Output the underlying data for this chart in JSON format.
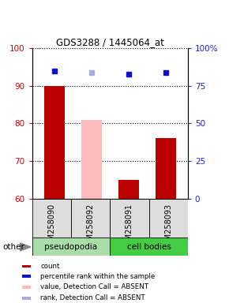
{
  "title": "GDS3288 / 1445064_at",
  "samples": [
    "GSM258090",
    "GSM258092",
    "GSM258091",
    "GSM258093"
  ],
  "bar_values": [
    90,
    81,
    65,
    76
  ],
  "bar_colors": [
    "#bb0000",
    "#ffbbbb",
    "#bb0000",
    "#bb0000"
  ],
  "dot_present_values": [
    85,
    null,
    83,
    84
  ],
  "dot_absent_values": [
    null,
    84,
    null,
    null
  ],
  "ylim_left": [
    60,
    100
  ],
  "yticks_left": [
    60,
    70,
    80,
    90,
    100
  ],
  "yticks_right": [
    0,
    25,
    50,
    75,
    100
  ],
  "ytick_labels_right": [
    "0",
    "25",
    "50",
    "75",
    "100%"
  ],
  "left_tick_color": "#cc0000",
  "right_tick_color": "#2222cc",
  "dot_present_color": "#1111cc",
  "dot_absent_color": "#aaaadd",
  "group_colors": {
    "pseudopodia": "#aaddaa",
    "cell bodies": "#44cc44"
  },
  "legend_items": [
    {
      "label": "count",
      "color": "#bb0000"
    },
    {
      "label": "percentile rank within the sample",
      "color": "#1111cc"
    },
    {
      "label": "value, Detection Call = ABSENT",
      "color": "#ffbbbb"
    },
    {
      "label": "rank, Detection Call = ABSENT",
      "color": "#aaaadd"
    }
  ],
  "bar_bottom": 60,
  "bar_width": 0.55
}
